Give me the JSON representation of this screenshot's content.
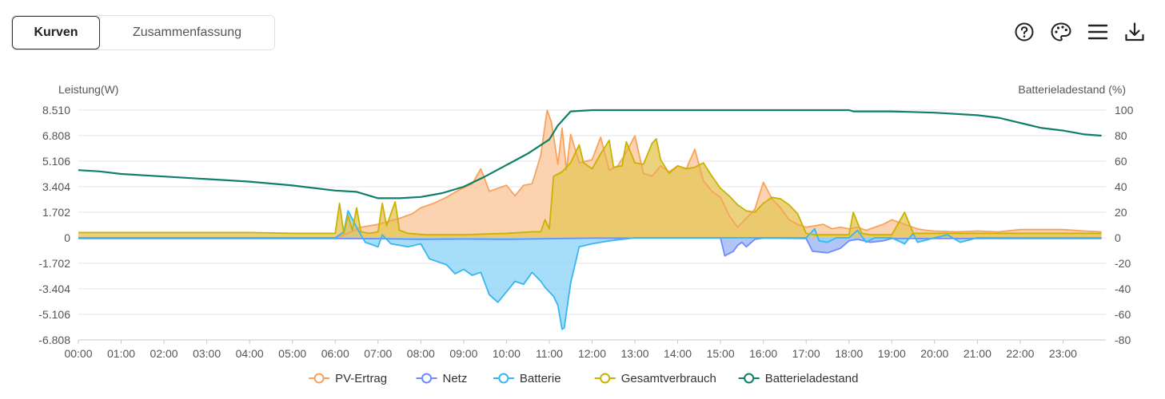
{
  "tabs": [
    {
      "label": "Kurven",
      "active": true
    },
    {
      "label": "Zusammenfassung",
      "active": false
    }
  ],
  "toolbar": {
    "icons": [
      "help-icon",
      "palette-icon",
      "menu-icon",
      "download-icon"
    ]
  },
  "chart_data": {
    "type": "area",
    "y_left": {
      "label": "Leistung(W)",
      "range": [
        -6808,
        8510
      ],
      "ticks": [
        "8.510",
        "6.808",
        "5.106",
        "3.404",
        "1.702",
        "0",
        "-1.702",
        "-3.404",
        "-5.106",
        "-6.808"
      ]
    },
    "y_right": {
      "label": "Batterieladestand (%)",
      "range": [
        -80,
        100
      ],
      "ticks": [
        "100",
        "80",
        "60",
        "40",
        "20",
        "0",
        "-20",
        "-40",
        "-60",
        "-80"
      ]
    },
    "x_range": [
      0,
      24
    ],
    "x_ticks": [
      "00:00",
      "01:00",
      "02:00",
      "03:00",
      "04:00",
      "05:00",
      "06:00",
      "07:00",
      "08:00",
      "09:00",
      "10:00",
      "11:00",
      "12:00",
      "13:00",
      "14:00",
      "15:00",
      "16:00",
      "17:00",
      "18:00",
      "19:00",
      "20:00",
      "21:00",
      "22:00",
      "23:00"
    ],
    "grid": true,
    "legend_position": "bottom",
    "series": [
      {
        "name": "PV-Ertrag",
        "color": "#f7a35c",
        "axis": "left",
        "fill": "#fbc79a",
        "points": [
          [
            0,
            0
          ],
          [
            6,
            0
          ],
          [
            6.3,
            300
          ],
          [
            6.6,
            700
          ],
          [
            7,
            900
          ],
          [
            7.5,
            1300
          ],
          [
            7.8,
            1600
          ],
          [
            8,
            2000
          ],
          [
            8.3,
            2300
          ],
          [
            8.6,
            2700
          ],
          [
            8.9,
            3200
          ],
          [
            9.2,
            3600
          ],
          [
            9.4,
            4600
          ],
          [
            9.6,
            3100
          ],
          [
            9.8,
            3300
          ],
          [
            10,
            3500
          ],
          [
            10.2,
            2800
          ],
          [
            10.4,
            3500
          ],
          [
            10.6,
            3600
          ],
          [
            10.8,
            5500
          ],
          [
            10.95,
            8500
          ],
          [
            11.05,
            7700
          ],
          [
            11.2,
            4900
          ],
          [
            11.3,
            7300
          ],
          [
            11.4,
            4500
          ],
          [
            11.5,
            6900
          ],
          [
            11.7,
            5000
          ],
          [
            12,
            5200
          ],
          [
            12.2,
            6700
          ],
          [
            12.4,
            4500
          ],
          [
            12.6,
            4800
          ],
          [
            12.8,
            5700
          ],
          [
            13,
            6800
          ],
          [
            13.2,
            4300
          ],
          [
            13.4,
            4100
          ],
          [
            13.6,
            4800
          ],
          [
            13.8,
            4400
          ],
          [
            14,
            4800
          ],
          [
            14.2,
            4600
          ],
          [
            14.4,
            5900
          ],
          [
            14.6,
            3800
          ],
          [
            14.8,
            3100
          ],
          [
            15,
            2700
          ],
          [
            15.2,
            1500
          ],
          [
            15.4,
            700
          ],
          [
            15.6,
            1300
          ],
          [
            15.8,
            1900
          ],
          [
            16,
            3700
          ],
          [
            16.2,
            2600
          ],
          [
            16.4,
            2000
          ],
          [
            16.6,
            1200
          ],
          [
            16.8,
            900
          ],
          [
            17,
            700
          ],
          [
            17.2,
            800
          ],
          [
            17.4,
            900
          ],
          [
            17.6,
            600
          ],
          [
            17.8,
            700
          ],
          [
            18,
            600
          ],
          [
            18.2,
            700
          ],
          [
            18.4,
            500
          ],
          [
            18.6,
            700
          ],
          [
            18.8,
            900
          ],
          [
            19,
            1200
          ],
          [
            19.2,
            1000
          ],
          [
            19.4,
            800
          ],
          [
            19.6,
            600
          ],
          [
            19.8,
            500
          ],
          [
            20,
            450
          ],
          [
            20.5,
            400
          ],
          [
            21,
            450
          ],
          [
            21.5,
            400
          ],
          [
            22,
            550
          ],
          [
            22.5,
            550
          ],
          [
            23,
            550
          ],
          [
            23.5,
            450
          ],
          [
            23.9,
            400
          ]
        ]
      },
      {
        "name": "Netz",
        "color": "#6b8cff",
        "axis": "left",
        "fill": "#9db3f5",
        "points": [
          [
            0,
            -40
          ],
          [
            6,
            -40
          ],
          [
            7,
            -60
          ],
          [
            8,
            -100
          ],
          [
            9,
            -80
          ],
          [
            10,
            -100
          ],
          [
            11,
            -60
          ],
          [
            12,
            -20
          ],
          [
            13,
            -20
          ],
          [
            15,
            -20
          ],
          [
            15.1,
            -1200
          ],
          [
            15.3,
            -900
          ],
          [
            15.4,
            -500
          ],
          [
            15.5,
            -300
          ],
          [
            15.6,
            -600
          ],
          [
            15.8,
            -100
          ],
          [
            16,
            -20
          ],
          [
            17,
            -40
          ],
          [
            17.15,
            -900
          ],
          [
            17.5,
            -1000
          ],
          [
            17.8,
            -700
          ],
          [
            18,
            -200
          ],
          [
            18.2,
            -100
          ],
          [
            18.5,
            -300
          ],
          [
            18.8,
            -200
          ],
          [
            19,
            -50
          ],
          [
            20,
            -50
          ],
          [
            23.9,
            -50
          ]
        ]
      },
      {
        "name": "Batterie",
        "color": "#36b6f2",
        "axis": "left",
        "fill": "#8dd4f7",
        "points": [
          [
            0,
            0
          ],
          [
            6,
            0
          ],
          [
            6.2,
            400
          ],
          [
            6.3,
            1800
          ],
          [
            6.5,
            700
          ],
          [
            6.7,
            -300
          ],
          [
            6.9,
            -500
          ],
          [
            7,
            -600
          ],
          [
            7.1,
            200
          ],
          [
            7.3,
            -400
          ],
          [
            7.5,
            -500
          ],
          [
            7.7,
            -600
          ],
          [
            8,
            -400
          ],
          [
            8.2,
            -1400
          ],
          [
            8.4,
            -1600
          ],
          [
            8.6,
            -1800
          ],
          [
            8.8,
            -2400
          ],
          [
            9,
            -2100
          ],
          [
            9.2,
            -2500
          ],
          [
            9.4,
            -2300
          ],
          [
            9.6,
            -3800
          ],
          [
            9.8,
            -4300
          ],
          [
            10,
            -3600
          ],
          [
            10.2,
            -2900
          ],
          [
            10.4,
            -3100
          ],
          [
            10.6,
            -2300
          ],
          [
            10.8,
            -2900
          ],
          [
            10.9,
            -3300
          ],
          [
            11,
            -3600
          ],
          [
            11.1,
            -3900
          ],
          [
            11.2,
            -4500
          ],
          [
            11.3,
            -6100
          ],
          [
            11.35,
            -6000
          ],
          [
            11.5,
            -3000
          ],
          [
            11.7,
            -600
          ],
          [
            12,
            -400
          ],
          [
            12.2,
            -300
          ],
          [
            12.4,
            -200
          ],
          [
            13,
            0
          ],
          [
            17,
            0
          ],
          [
            17.2,
            600
          ],
          [
            17.3,
            -200
          ],
          [
            17.5,
            -300
          ],
          [
            17.7,
            0
          ],
          [
            18,
            0
          ],
          [
            18.2,
            500
          ],
          [
            18.4,
            -300
          ],
          [
            18.6,
            0
          ],
          [
            19,
            0
          ],
          [
            19.3,
            -400
          ],
          [
            19.5,
            300
          ],
          [
            19.6,
            -300
          ],
          [
            20,
            0
          ],
          [
            20.3,
            200
          ],
          [
            20.6,
            -300
          ],
          [
            21,
            0
          ],
          [
            23.9,
            0
          ]
        ]
      },
      {
        "name": "Gesamtverbrauch",
        "color": "#c9b200",
        "axis": "left",
        "fill": "#e6c65a",
        "points": [
          [
            0,
            350
          ],
          [
            1,
            350
          ],
          [
            2,
            350
          ],
          [
            3,
            350
          ],
          [
            4,
            350
          ],
          [
            5,
            300
          ],
          [
            6,
            300
          ],
          [
            6.1,
            2300
          ],
          [
            6.2,
            300
          ],
          [
            6.3,
            1500
          ],
          [
            6.4,
            500
          ],
          [
            6.5,
            2000
          ],
          [
            6.6,
            400
          ],
          [
            6.8,
            300
          ],
          [
            7,
            400
          ],
          [
            7.1,
            2300
          ],
          [
            7.2,
            800
          ],
          [
            7.4,
            2400
          ],
          [
            7.5,
            500
          ],
          [
            7.7,
            300
          ],
          [
            7.9,
            250
          ],
          [
            8.1,
            200
          ],
          [
            9,
            200
          ],
          [
            10,
            300
          ],
          [
            10.6,
            400
          ],
          [
            10.8,
            400
          ],
          [
            10.9,
            1200
          ],
          [
            11,
            600
          ],
          [
            11.1,
            4100
          ],
          [
            11.3,
            4400
          ],
          [
            11.5,
            5000
          ],
          [
            11.7,
            6200
          ],
          [
            11.8,
            5000
          ],
          [
            12,
            4600
          ],
          [
            12.2,
            5600
          ],
          [
            12.4,
            6500
          ],
          [
            12.5,
            4700
          ],
          [
            12.7,
            4800
          ],
          [
            12.8,
            6400
          ],
          [
            13,
            5000
          ],
          [
            13.2,
            4900
          ],
          [
            13.4,
            6300
          ],
          [
            13.5,
            6600
          ],
          [
            13.6,
            5200
          ],
          [
            13.8,
            4300
          ],
          [
            14,
            4800
          ],
          [
            14.2,
            4600
          ],
          [
            14.4,
            4700
          ],
          [
            14.6,
            5000
          ],
          [
            14.8,
            4100
          ],
          [
            15,
            3300
          ],
          [
            15.2,
            2800
          ],
          [
            15.4,
            2200
          ],
          [
            15.6,
            1800
          ],
          [
            15.8,
            1700
          ],
          [
            16,
            2300
          ],
          [
            16.2,
            2700
          ],
          [
            16.4,
            2600
          ],
          [
            16.6,
            2200
          ],
          [
            16.8,
            1600
          ],
          [
            17,
            300
          ],
          [
            17.2,
            200
          ],
          [
            18,
            200
          ],
          [
            18.1,
            1700
          ],
          [
            18.3,
            300
          ],
          [
            18.5,
            200
          ],
          [
            19,
            200
          ],
          [
            19.3,
            1700
          ],
          [
            19.5,
            300
          ],
          [
            20,
            300
          ],
          [
            21,
            300
          ],
          [
            23.9,
            300
          ]
        ]
      },
      {
        "name": "Batterieladestand",
        "color": "#0f7f6a",
        "axis": "right",
        "points": [
          [
            0,
            53
          ],
          [
            0.5,
            52
          ],
          [
            1,
            50
          ],
          [
            2,
            48
          ],
          [
            3,
            46
          ],
          [
            4,
            44
          ],
          [
            5,
            41
          ],
          [
            6,
            37
          ],
          [
            6.5,
            36
          ],
          [
            7,
            31
          ],
          [
            7.5,
            31
          ],
          [
            8,
            32
          ],
          [
            8.5,
            35
          ],
          [
            9,
            40
          ],
          [
            9.5,
            48
          ],
          [
            10,
            57
          ],
          [
            10.5,
            66
          ],
          [
            11,
            77
          ],
          [
            11.2,
            88
          ],
          [
            11.5,
            99
          ],
          [
            12,
            100
          ],
          [
            14,
            100
          ],
          [
            16,
            100
          ],
          [
            17,
            100
          ],
          [
            18,
            100
          ],
          [
            18.1,
            99
          ],
          [
            19,
            99
          ],
          [
            20,
            98
          ],
          [
            21,
            96
          ],
          [
            21.5,
            94
          ],
          [
            22,
            90
          ],
          [
            22.5,
            86
          ],
          [
            23,
            84
          ],
          [
            23.5,
            81
          ],
          [
            23.9,
            80
          ]
        ]
      }
    ]
  }
}
